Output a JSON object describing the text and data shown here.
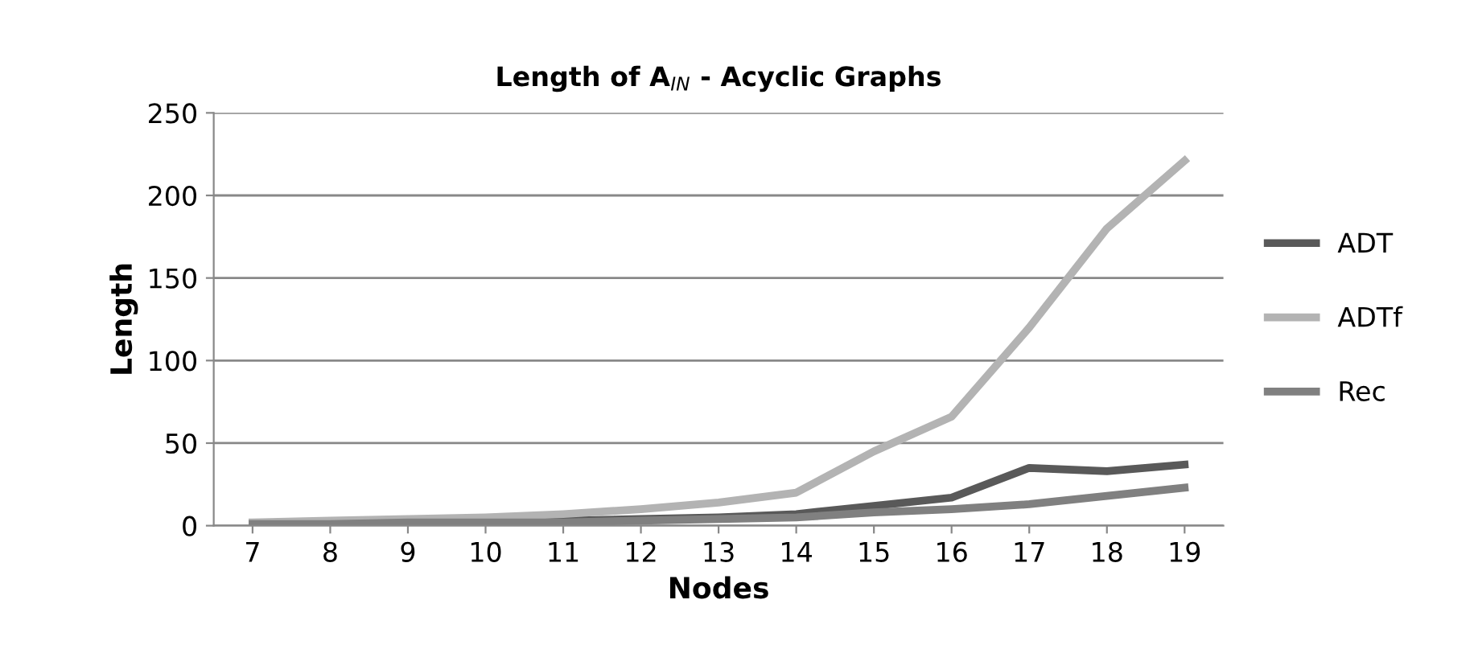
{
  "chart_data": {
    "type": "line",
    "title": "Length of A$_{IN}$ - Acyclic Graphs",
    "xlabel": "Nodes",
    "ylabel": "Length",
    "categories": [
      "7",
      "8",
      "9",
      "10",
      "11",
      "12",
      "13",
      "14",
      "15",
      "16",
      "17",
      "18",
      "19"
    ],
    "series": [
      {
        "name": "ADT",
        "color": "#595959",
        "values": [
          1,
          2,
          2,
          3,
          3,
          4,
          5,
          7,
          12,
          17,
          35,
          33,
          37
        ]
      },
      {
        "name": "ADTf",
        "color": "#b3b3b3",
        "values": [
          2,
          3,
          4,
          5,
          7,
          10,
          14,
          20,
          45,
          66,
          120,
          180,
          221
        ]
      },
      {
        "name": "Rec",
        "color": "#808080",
        "values": [
          1,
          1,
          2,
          2,
          2,
          3,
          4,
          5,
          8,
          10,
          13,
          18,
          23
        ]
      }
    ],
    "ylim": [
      0,
      250
    ],
    "yticks": [
      0,
      50,
      100,
      150,
      200,
      250
    ],
    "grid": "y",
    "legend": "right",
    "marker": "none",
    "line_style": "solid"
  }
}
